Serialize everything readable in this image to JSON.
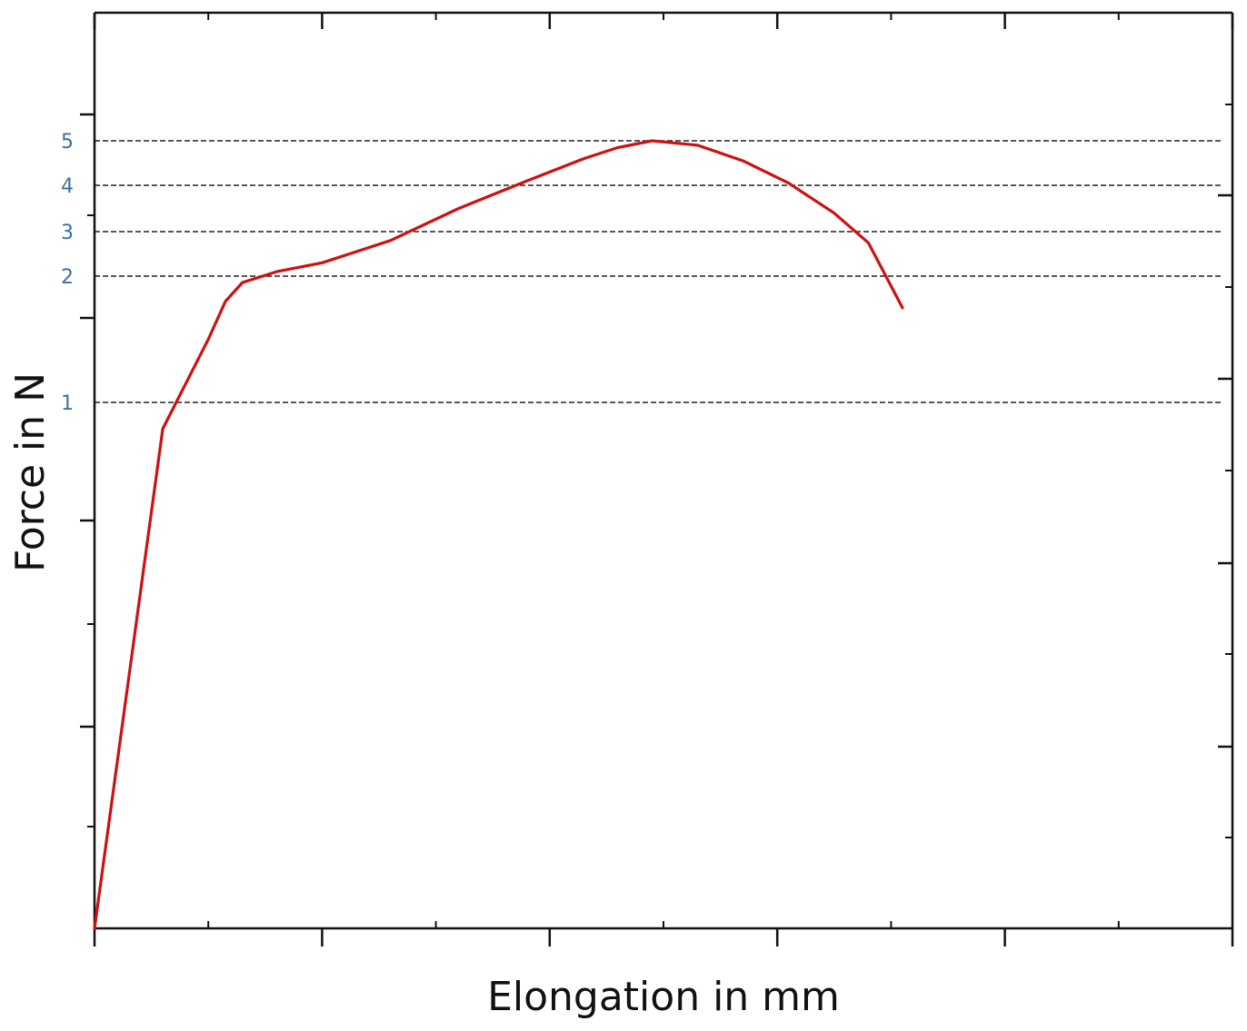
{
  "chart_data": {
    "type": "line",
    "xlabel": "Elongation in mm",
    "ylabel": "Force in N",
    "xlim": [
      0,
      10
    ],
    "ylim": [
      0,
      6.5
    ],
    "reference_lines": [
      {
        "label": "5",
        "y": 5
      },
      {
        "label": "4",
        "y": 4
      },
      {
        "label": "3",
        "y": 3
      },
      {
        "label": "2",
        "y": 2
      },
      {
        "label": "1",
        "y": 1
      }
    ],
    "series": [
      {
        "color": "#cc1111",
        "x": [
          0,
          0.6,
          1.0,
          1.15,
          1.3,
          1.6,
          2.0,
          2.6,
          3.2,
          3.8,
          4.3,
          4.6,
          4.9,
          5.3,
          5.7,
          6.1,
          6.5,
          6.8,
          7.1
        ],
        "y": [
          0,
          0.95,
          1.5,
          1.8,
          1.95,
          2.1,
          2.3,
          2.8,
          3.5,
          4.1,
          4.6,
          4.85,
          5.0,
          4.9,
          4.55,
          4.05,
          3.4,
          2.75,
          1.75
        ]
      }
    ],
    "grid": false,
    "legend": "none"
  }
}
